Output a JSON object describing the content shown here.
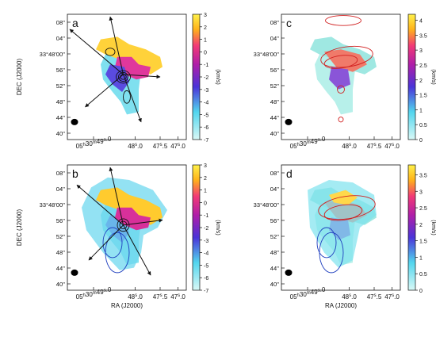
{
  "chart_data": [
    {
      "type": "heatmap",
      "panel": "a",
      "ylabel": "DEC (J2000)",
      "xlabel": "",
      "y_ticks": [
        "08''",
        "04''",
        "33°48'00''",
        "56''",
        "52''",
        "48''",
        "44''",
        "40''"
      ],
      "x_ticks": [
        "05h30m49s.0",
        "48s.0",
        "47s.5",
        "47s.0"
      ],
      "colorbar": {
        "ticks": [
          "3",
          "2",
          "1",
          "0",
          "-1",
          "-2",
          "-3",
          "-4",
          "-5",
          "-6",
          "-7"
        ],
        "range": [
          -7,
          3
        ],
        "label": "(km/s)"
      },
      "overlay": "black velocity contours and outflow arrows"
    },
    {
      "type": "heatmap",
      "panel": "b",
      "ylabel": "DEC (J2000)",
      "xlabel": "RA (J2000)",
      "y_ticks": [
        "08''",
        "04''",
        "33°48'00''",
        "56''",
        "52''",
        "48''",
        "44''",
        "40''"
      ],
      "x_ticks": [
        "05h30m49s.0",
        "48s.0",
        "47s.5",
        "47s.0"
      ],
      "colorbar": {
        "ticks": [
          "3",
          "2",
          "1",
          "0",
          "-1",
          "-2",
          "-3",
          "-4",
          "-5",
          "-6",
          "-7"
        ],
        "range": [
          -7,
          3
        ],
        "label": "(km/s)"
      },
      "overlay": "blue velocity contours and outflow arrows"
    },
    {
      "type": "heatmap",
      "panel": "c",
      "ylabel": "",
      "xlabel": "",
      "y_ticks": [
        "08''",
        "04''",
        "33°48'00''",
        "56''",
        "52''",
        "48''",
        "44''",
        "40''"
      ],
      "x_ticks": [
        "05h30m49s.0",
        "48s.0",
        "47s.5",
        "47s.0"
      ],
      "colorbar": {
        "ticks": [
          "4",
          "3.5",
          "3",
          "2.5",
          "2",
          "1.5",
          "1",
          "0.5",
          "0"
        ],
        "range": [
          0,
          4.2
        ],
        "label": "(km/s)"
      },
      "overlay": "red contours"
    },
    {
      "type": "heatmap",
      "panel": "d",
      "ylabel": "",
      "xlabel": "RA (J2000)",
      "y_ticks": [
        "08''",
        "04''",
        "33°48'00''",
        "56''",
        "52''",
        "48''",
        "44''",
        "40''"
      ],
      "x_ticks": [
        "05h30m49s.0",
        "48s.0",
        "47s.5",
        "47s.0"
      ],
      "colorbar": {
        "ticks": [
          "3.5",
          "3",
          "2.5",
          "2",
          "1.5",
          "1",
          "0.5",
          "0"
        ],
        "range": [
          0,
          3.8
        ],
        "label": "(km/s)"
      },
      "overlay": "red and blue contours"
    }
  ],
  "colors": {
    "contour_black": "#111111",
    "contour_red": "#d11f1f",
    "contour_blue": "#1f3fbf",
    "background": "#ffffff"
  }
}
